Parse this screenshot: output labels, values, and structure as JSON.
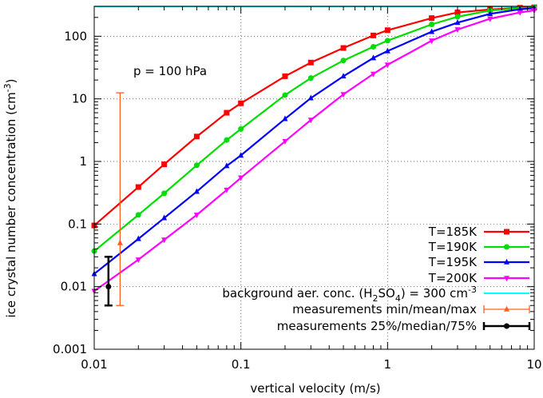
{
  "chart_data": {
    "type": "line",
    "xlabel": "vertical velocity (m/s)",
    "ylabel": "ice crystal number concentration",
    "ylabel_unit_base": "cm",
    "ylabel_unit_exp": "-3",
    "xscale": "log",
    "yscale": "log",
    "xlim": [
      0.01,
      10
    ],
    "ylim": [
      0.001,
      300
    ],
    "x_ticks": [
      0.01,
      0.1,
      1,
      10
    ],
    "x_tick_labels": [
      "0.01",
      "0.1",
      "1",
      "10"
    ],
    "y_ticks": [
      0.001,
      0.01,
      0.1,
      1,
      10,
      100
    ],
    "y_tick_labels": [
      "0.001",
      "0.01",
      "0.1",
      "1",
      "10",
      "100"
    ],
    "grid": "dotted at decades",
    "legend_position": "bottom-right",
    "annotation": "p = 100 hPa",
    "series": [
      {
        "name": "T=185K",
        "color": "#ff0000",
        "marker": "square",
        "x": [
          0.01,
          0.02,
          0.03,
          0.05,
          0.08,
          0.1,
          0.2,
          0.3,
          0.5,
          0.8,
          1,
          2,
          3,
          5,
          8,
          10
        ],
        "y": [
          0.095,
          0.39,
          0.9,
          2.5,
          6.0,
          8.5,
          23,
          38,
          65,
          103,
          125,
          195,
          240,
          268,
          285,
          290
        ]
      },
      {
        "name": "T=190K",
        "color": "#00dd00",
        "marker": "circle",
        "x": [
          0.01,
          0.02,
          0.03,
          0.05,
          0.08,
          0.1,
          0.2,
          0.3,
          0.5,
          0.8,
          1,
          2,
          3,
          5,
          8,
          10
        ],
        "y": [
          0.037,
          0.14,
          0.31,
          0.87,
          2.2,
          3.3,
          11.5,
          21.5,
          41,
          68,
          85,
          155,
          205,
          258,
          280,
          288
        ]
      },
      {
        "name": "T=195K",
        "color": "#0000ff",
        "marker": "triangle-up",
        "x": [
          0.01,
          0.02,
          0.03,
          0.05,
          0.08,
          0.1,
          0.2,
          0.3,
          0.5,
          0.8,
          1,
          2,
          3,
          5,
          8,
          10
        ],
        "y": [
          0.016,
          0.058,
          0.125,
          0.33,
          0.85,
          1.25,
          4.8,
          10.3,
          23,
          45,
          58,
          118,
          165,
          228,
          270,
          282
        ]
      },
      {
        "name": "T=200K",
        "color": "#ff00ff",
        "marker": "triangle-down",
        "x": [
          0.01,
          0.02,
          0.03,
          0.05,
          0.08,
          0.1,
          0.2,
          0.3,
          0.5,
          0.8,
          1,
          2,
          3,
          5,
          8,
          10
        ],
        "y": [
          0.0085,
          0.027,
          0.056,
          0.14,
          0.35,
          0.55,
          2.1,
          4.6,
          11.8,
          25,
          35,
          85,
          128,
          190,
          240,
          260
        ]
      }
    ],
    "background": {
      "name_pre": "background aer. conc. (H",
      "name_sub1": "2",
      "name_mid": "SO",
      "name_sub2": "4",
      "name_post": ")  = 300 cm",
      "name_sup": "-3",
      "color": "#00ffff",
      "y": 300
    },
    "measurements_minmax": {
      "name": "measurements min/mean/max",
      "color": "#ff6020",
      "x": 0.015,
      "min": 0.005,
      "mean": 0.05,
      "max": 12.5
    },
    "measurements_quartiles": {
      "name": "measurements 25%/median/75%",
      "color": "#000000",
      "x": 0.0125,
      "q25": 0.005,
      "median": 0.01,
      "q75": 0.03
    }
  }
}
